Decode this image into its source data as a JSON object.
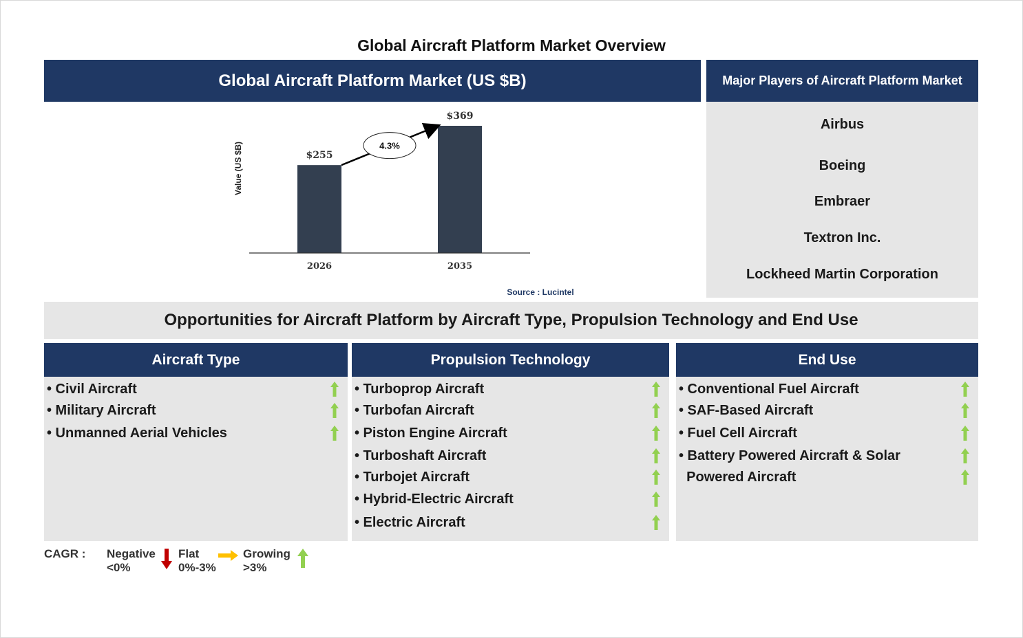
{
  "title": "Global Aircraft Platform Market Overview",
  "chart_header": "Global Aircraft Platform Market (US $B)",
  "chart_data": {
    "type": "bar",
    "categories": [
      "2026",
      "2035"
    ],
    "values": [
      255,
      369
    ],
    "value_labels": [
      "$255",
      "$369"
    ],
    "ylabel": "Value (US $B)",
    "ylim": [
      0,
      369
    ],
    "cagr_label": "4.3%",
    "bar_color": "#333f50",
    "source": "Source : Lucintel"
  },
  "players": {
    "header": "Major Players of Aircraft Platform Market",
    "items": [
      "Airbus",
      "Boeing",
      "Embraer",
      "Textron Inc.",
      "Lockheed Martin Corporation"
    ]
  },
  "opportunities": {
    "header": "Opportunities for Aircraft Platform by Aircraft Type, Propulsion Technology and End Use",
    "columns": [
      {
        "title": "Aircraft Type",
        "items": [
          "• Civil Aircraft",
          "• Military Aircraft",
          "• Unmanned Aerial Vehicles"
        ]
      },
      {
        "title": "Propulsion Technology",
        "items": [
          "• Turboprop Aircraft",
          "• Turbofan Aircraft",
          "• Piston Engine Aircraft",
          "• Turboshaft Aircraft",
          "• Turbojet Aircraft",
          "• Hybrid-Electric Aircraft",
          "• Electric Aircraft"
        ]
      },
      {
        "title": "End Use",
        "items": [
          "• Conventional Fuel Aircraft",
          "• SAF-Based Aircraft",
          "• Fuel Cell Aircraft",
          "• Battery Powered Aircraft & Solar",
          "  Powered Aircraft"
        ]
      }
    ]
  },
  "legend": {
    "label": "CAGR  :",
    "negative_1": "Negative",
    "negative_2": "<0%",
    "flat_1": "Flat",
    "flat_2": "0%-3%",
    "growing_1": "Growing",
    "growing_2": ">3%"
  },
  "colors": {
    "navy": "#1f3864",
    "panel_gray": "#e6e6e6",
    "bar": "#333f50",
    "arrow_up": "#92d050",
    "arrow_down": "#c00000",
    "arrow_flat": "#ffc000",
    "source_text": "#1f3864"
  },
  "icons": {
    "growth": "arrow-up-green-icon",
    "negative": "arrow-down-red-icon",
    "flat": "arrow-right-yellow-icon"
  }
}
